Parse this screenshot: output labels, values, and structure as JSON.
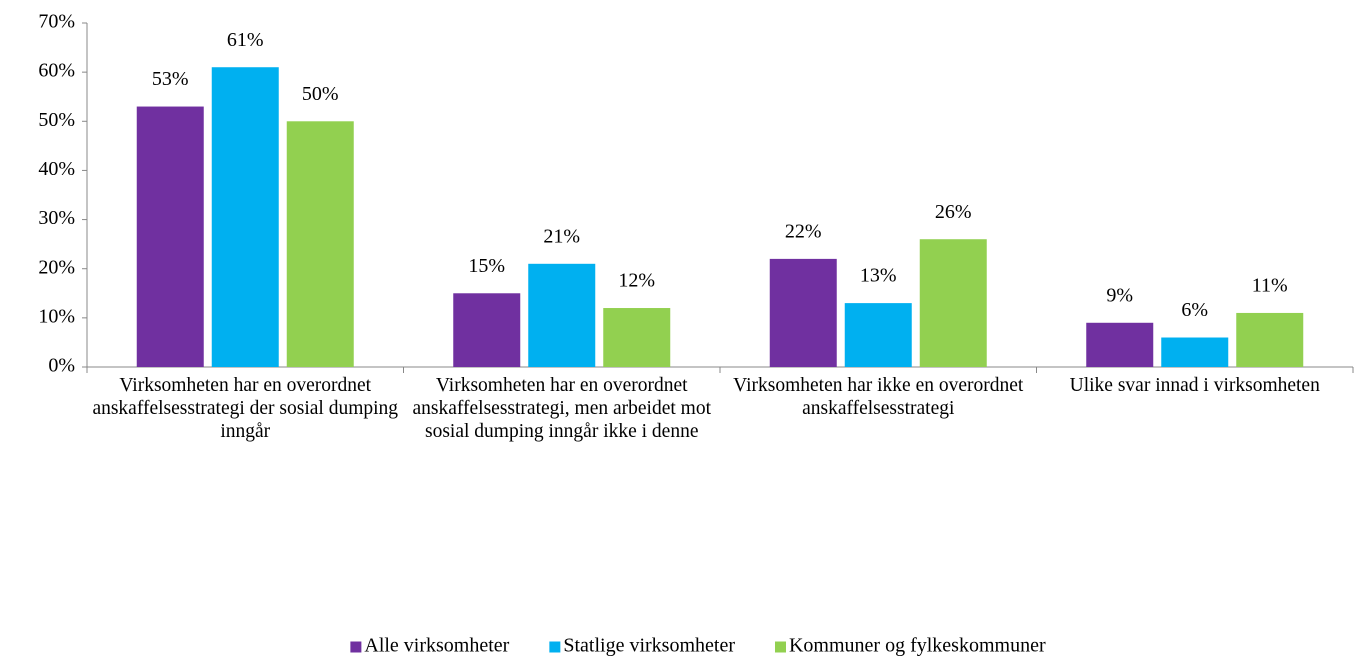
{
  "chart_data": {
    "type": "bar",
    "categories": [
      "Virksomheten har en overordnet anskaffelsesstrategi der sosial dumping inngår",
      "Virksomheten har en overordnet anskaffelsesstrategi, men arbeidet mot sosial dumping inngår ikke i denne",
      "Virksomheten har ikke en overordnet anskaffelsesstrategi",
      "Ulike svar innad i virksomheten"
    ],
    "series": [
      {
        "name": "Alle virksomheter",
        "color": "#7030a0",
        "values": [
          53,
          15,
          22,
          9
        ],
        "value_labels": [
          "53%",
          "15%",
          "22%",
          "9%"
        ]
      },
      {
        "name": "Statlige virksomheter",
        "color": "#00b0f0",
        "values": [
          61,
          21,
          13,
          6
        ],
        "value_labels": [
          "61%",
          "21%",
          "13%",
          "6%"
        ]
      },
      {
        "name": "Kommuner og fylkeskommuner",
        "color": "#92d050",
        "values": [
          50,
          12,
          26,
          11
        ],
        "value_labels": [
          "50%",
          "12%",
          "26%",
          "11%"
        ]
      }
    ],
    "ylim": [
      0,
      70
    ],
    "yticks": [
      {
        "value": 0,
        "label": "0%"
      },
      {
        "value": 10,
        "label": "10%"
      },
      {
        "value": 20,
        "label": "20%"
      },
      {
        "value": 30,
        "label": "30%"
      },
      {
        "value": 40,
        "label": "40%"
      },
      {
        "value": 50,
        "label": "50%"
      },
      {
        "value": 60,
        "label": "60%"
      },
      {
        "value": 70,
        "label": "70%"
      }
    ],
    "legend": "bottom"
  }
}
